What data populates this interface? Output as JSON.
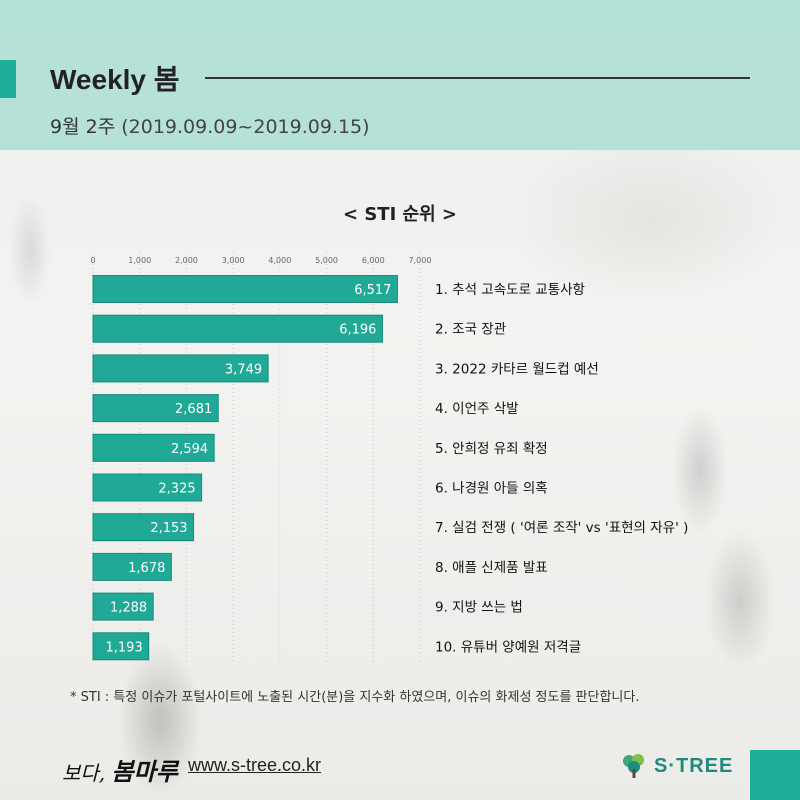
{
  "header": {
    "title": "Weekly 봄",
    "week": "9월 2주",
    "range": "(2019.09.09~2019.09.15)"
  },
  "colors": {
    "accent": "#1fae98",
    "bar": "#20a996",
    "header_bg": "#aadfd4"
  },
  "chart_data": {
    "type": "bar",
    "orientation": "horizontal",
    "title": "< STI 순위 >",
    "categories": [
      "1. 추석 고속도로 교통사항",
      "2. 조국 장관",
      "3. 2022 카타르 월드컵 예선",
      "4. 이언주 삭발",
      "5. 안희정 유죄 확정",
      "6. 나경원 아들 의혹",
      "7. 실검 전쟁 ( '여론 조작' vs '표현의 자유' )",
      "8. 애플 신제품 발표",
      "9. 지방 쓰는 법",
      "10. 유튜버 양예원 저격글"
    ],
    "values": [
      6517,
      6196,
      3749,
      2681,
      2594,
      2325,
      2153,
      1678,
      1288,
      1193
    ],
    "value_labels": [
      "6,517",
      "6,196",
      "3,749",
      "2,681",
      "2,594",
      "2,325",
      "2,153",
      "1,678",
      "1,288",
      "1,193"
    ],
    "xlim": [
      0,
      7000
    ],
    "xticks": [
      0,
      1000,
      2000,
      3000,
      4000,
      5000,
      6000,
      7000
    ],
    "xtick_labels": [
      "0",
      "1,000",
      "2,000",
      "3,000",
      "4,000",
      "5,000",
      "6,000",
      "7,000"
    ],
    "grid": true,
    "axis_position": "top"
  },
  "footnote": "* STI : 특정 이슈가 포털사이트에 노출된 시간(분)을 지수화 하였으며, 이슈의 화제성 정도를 판단합니다.",
  "footer": {
    "logo_left_small": "보다,",
    "logo_left_big": "봄마루",
    "url": "www.s-tree.co.kr",
    "brand": "S·TREE",
    "brand_icon": "tree-icon"
  }
}
